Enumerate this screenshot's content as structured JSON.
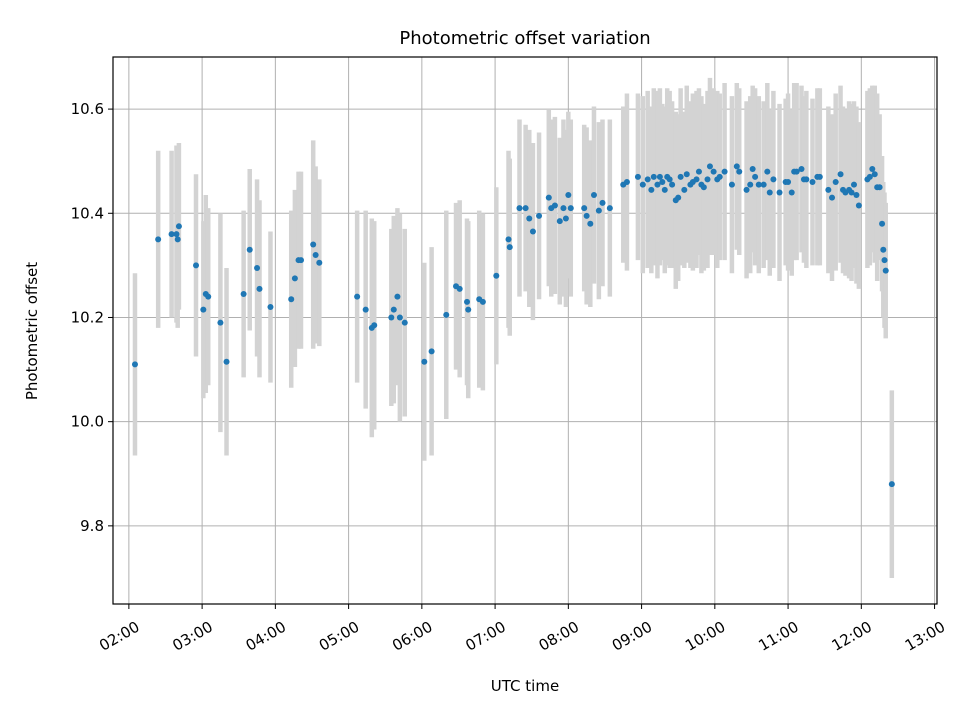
{
  "chart_data": {
    "type": "scatter",
    "title": "Photometric offset variation",
    "xlabel": "UTC time",
    "ylabel": "Photometric offset",
    "x_unit": "hours UTC",
    "xlim": [
      "01:47",
      "13:02"
    ],
    "ylim": [
      9.65,
      10.7
    ],
    "grid": true,
    "x_ticks": [
      "02:00",
      "03:00",
      "04:00",
      "05:00",
      "06:00",
      "07:00",
      "08:00",
      "09:00",
      "10:00",
      "11:00",
      "12:00",
      "13:00"
    ],
    "y_ticks": [
      "9.8",
      "10.0",
      "10.2",
      "10.4",
      "10.6"
    ],
    "series": [
      {
        "color": "#1f77b4",
        "error_color": "#d3d3d3",
        "points": [
          [
            "02:05",
            10.11,
            0.175
          ],
          [
            "02:24",
            10.35,
            0.17
          ],
          [
            "02:35",
            10.36,
            0.16
          ],
          [
            "02:39",
            10.36,
            0.17
          ],
          [
            "02:40",
            10.35,
            0.17
          ],
          [
            "02:41",
            10.375,
            0.16
          ],
          [
            "02:55",
            10.3,
            0.175
          ],
          [
            "03:01",
            10.215,
            0.17
          ],
          [
            "03:03",
            10.245,
            0.19
          ],
          [
            "03:05",
            10.24,
            0.17
          ],
          [
            "03:15",
            10.19,
            0.21
          ],
          [
            "03:20",
            10.115,
            0.18
          ],
          [
            "03:34",
            10.245,
            0.16
          ],
          [
            "03:39",
            10.33,
            0.155
          ],
          [
            "03:45",
            10.295,
            0.17
          ],
          [
            "03:47",
            10.255,
            0.17
          ],
          [
            "03:56",
            10.22,
            0.145
          ],
          [
            "04:13",
            10.235,
            0.17
          ],
          [
            "04:16",
            10.275,
            0.17
          ],
          [
            "04:19",
            10.31,
            0.17
          ],
          [
            "04:21",
            10.31,
            0.17
          ],
          [
            "04:31",
            10.34,
            0.2
          ],
          [
            "04:33",
            10.32,
            0.17
          ],
          [
            "04:36",
            10.305,
            0.16
          ],
          [
            "05:07",
            10.24,
            0.165
          ],
          [
            "05:14",
            10.215,
            0.19
          ],
          [
            "05:19",
            10.18,
            0.21
          ],
          [
            "05:21",
            10.185,
            0.2
          ],
          [
            "05:35",
            10.2,
            0.17
          ],
          [
            "05:37",
            10.215,
            0.18
          ],
          [
            "05:40",
            10.24,
            0.17
          ],
          [
            "05:42",
            10.2,
            0.2
          ],
          [
            "05:46",
            10.19,
            0.18
          ],
          [
            "06:02",
            10.115,
            0.19
          ],
          [
            "06:08",
            10.135,
            0.2
          ],
          [
            "06:20",
            10.205,
            0.2
          ],
          [
            "06:28",
            10.26,
            0.16
          ],
          [
            "06:31",
            10.255,
            0.17
          ],
          [
            "06:37",
            10.23,
            0.16
          ],
          [
            "06:38",
            10.215,
            0.17
          ],
          [
            "06:47",
            10.235,
            0.17
          ],
          [
            "06:50",
            10.23,
            0.17
          ],
          [
            "07:01",
            10.28,
            0.17
          ],
          [
            "07:11",
            10.35,
            0.17
          ],
          [
            "07:12",
            10.335,
            0.17
          ],
          [
            "07:20",
            10.41,
            0.17
          ],
          [
            "07:25",
            10.41,
            0.16
          ],
          [
            "07:28",
            10.39,
            0.17
          ],
          [
            "07:31",
            10.365,
            0.17
          ],
          [
            "07:36",
            10.395,
            0.16
          ],
          [
            "07:44",
            10.43,
            0.17
          ],
          [
            "07:46",
            10.41,
            0.17
          ],
          [
            "07:49",
            10.415,
            0.17
          ],
          [
            "07:53",
            10.385,
            0.16
          ],
          [
            "07:56",
            10.41,
            0.17
          ],
          [
            "07:58",
            10.39,
            0.17
          ],
          [
            "08:00",
            10.435,
            0.16
          ],
          [
            "08:02",
            10.41,
            0.17
          ],
          [
            "08:13",
            10.41,
            0.16
          ],
          [
            "08:15",
            10.395,
            0.17
          ],
          [
            "08:18",
            10.38,
            0.16
          ],
          [
            "08:21",
            10.435,
            0.17
          ],
          [
            "08:25",
            10.405,
            0.17
          ],
          [
            "08:28",
            10.42,
            0.16
          ],
          [
            "08:34",
            10.41,
            0.17
          ],
          [
            "08:45",
            10.455,
            0.15
          ],
          [
            "08:48",
            10.46,
            0.17
          ],
          [
            "08:57",
            10.47,
            0.16
          ],
          [
            "09:01",
            10.455,
            0.17
          ],
          [
            "09:05",
            10.465,
            0.17
          ],
          [
            "09:08",
            10.445,
            0.16
          ],
          [
            "09:10",
            10.47,
            0.17
          ],
          [
            "09:13",
            10.455,
            0.18
          ],
          [
            "09:15",
            10.47,
            0.17
          ],
          [
            "09:17",
            10.46,
            0.15
          ],
          [
            "09:19",
            10.445,
            0.16
          ],
          [
            "09:21",
            10.47,
            0.17
          ],
          [
            "09:23",
            10.465,
            0.17
          ],
          [
            "09:25",
            10.455,
            0.16
          ],
          [
            "09:28",
            10.425,
            0.17
          ],
          [
            "09:30",
            10.43,
            0.16
          ],
          [
            "09:32",
            10.47,
            0.17
          ],
          [
            "09:35",
            10.445,
            0.15
          ],
          [
            "09:37",
            10.475,
            0.17
          ],
          [
            "09:40",
            10.455,
            0.16
          ],
          [
            "09:42",
            10.46,
            0.17
          ],
          [
            "09:45",
            10.465,
            0.17
          ],
          [
            "09:47",
            10.48,
            0.16
          ],
          [
            "09:49",
            10.455,
            0.17
          ],
          [
            "09:51",
            10.45,
            0.16
          ],
          [
            "09:54",
            10.465,
            0.17
          ],
          [
            "09:56",
            10.49,
            0.17
          ],
          [
            "09:59",
            10.48,
            0.16
          ],
          [
            "10:02",
            10.465,
            0.17
          ],
          [
            "10:04",
            10.47,
            0.16
          ],
          [
            "10:08",
            10.48,
            0.17
          ],
          [
            "10:14",
            10.455,
            0.17
          ],
          [
            "10:18",
            10.49,
            0.16
          ],
          [
            "10:20",
            10.48,
            0.16
          ],
          [
            "10:26",
            10.445,
            0.17
          ],
          [
            "10:29",
            10.455,
            0.17
          ],
          [
            "10:31",
            10.485,
            0.16
          ],
          [
            "10:33",
            10.47,
            0.17
          ],
          [
            "10:36",
            10.455,
            0.17
          ],
          [
            "10:40",
            10.455,
            0.16
          ],
          [
            "10:43",
            10.48,
            0.17
          ],
          [
            "10:45",
            10.44,
            0.16
          ],
          [
            "10:48",
            10.465,
            0.17
          ],
          [
            "10:53",
            10.44,
            0.17
          ],
          [
            "10:58",
            10.46,
            0.16
          ],
          [
            "11:00",
            10.46,
            0.17
          ],
          [
            "11:03",
            10.44,
            0.16
          ],
          [
            "11:05",
            10.48,
            0.17
          ],
          [
            "11:07",
            10.48,
            0.17
          ],
          [
            "11:11",
            10.485,
            0.16
          ],
          [
            "11:13",
            10.465,
            0.16
          ],
          [
            "11:15",
            10.465,
            0.17
          ],
          [
            "11:20",
            10.46,
            0.16
          ],
          [
            "11:24",
            10.47,
            0.17
          ],
          [
            "11:26",
            10.47,
            0.17
          ],
          [
            "11:33",
            10.445,
            0.16
          ],
          [
            "11:36",
            10.43,
            0.16
          ],
          [
            "11:39",
            10.46,
            0.17
          ],
          [
            "11:43",
            10.475,
            0.17
          ],
          [
            "11:45",
            10.445,
            0.16
          ],
          [
            "11:47",
            10.44,
            0.16
          ],
          [
            "11:50",
            10.445,
            0.17
          ],
          [
            "11:52",
            10.44,
            0.17
          ],
          [
            "11:54",
            10.455,
            0.16
          ],
          [
            "11:56",
            10.435,
            0.17
          ],
          [
            "11:58",
            10.415,
            0.16
          ],
          [
            "12:05",
            10.465,
            0.17
          ],
          [
            "12:07",
            10.47,
            0.17
          ],
          [
            "12:09",
            10.485,
            0.16
          ],
          [
            "12:11",
            10.475,
            0.17
          ],
          [
            "12:13",
            10.45,
            0.18
          ],
          [
            "12:15",
            10.45,
            0.14
          ],
          [
            "12:17",
            10.38,
            0.13
          ],
          [
            "12:18",
            10.33,
            0.13
          ],
          [
            "12:19",
            10.31,
            0.13
          ],
          [
            "12:20",
            10.29,
            0.13
          ],
          [
            "12:25",
            9.88,
            0.18
          ]
        ]
      }
    ]
  }
}
